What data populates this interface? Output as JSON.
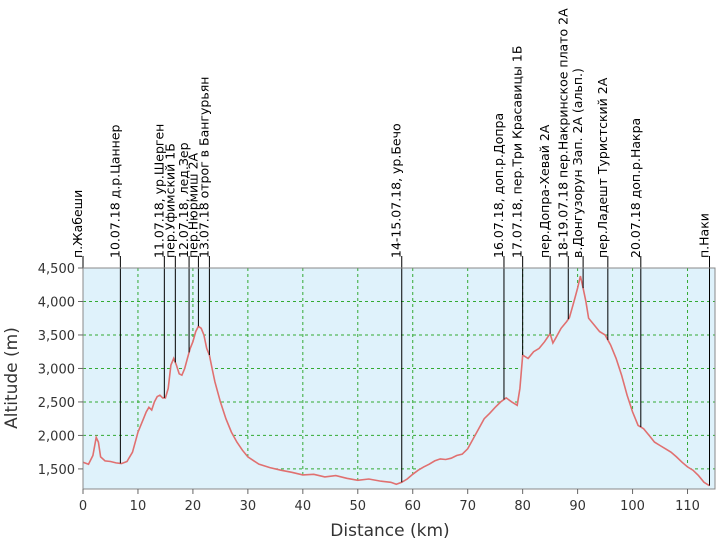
{
  "chart_data": {
    "type": "area",
    "title": "",
    "xlabel": "Distance (km)",
    "ylabel": "Altitude (m)",
    "xlim": [
      0,
      115
    ],
    "ylim": [
      1200,
      4500
    ],
    "x_ticks": [
      0,
      10,
      20,
      30,
      40,
      50,
      60,
      70,
      80,
      90,
      100,
      110
    ],
    "y_ticks": [
      1500,
      2000,
      2500,
      3000,
      3500,
      4000,
      4500
    ],
    "y_tick_labels": [
      "1,500",
      "2,000",
      "2,500",
      "3,000",
      "3,500",
      "4,000",
      "4,500"
    ],
    "grid": true,
    "colors": {
      "line": "#e07070",
      "plot_bg": "#dff2fb",
      "grid": "#33aa33",
      "waypoint_line": "#000000"
    },
    "series": [
      {
        "x": [
          0,
          1,
          1.8,
          2.4,
          2.8,
          3.2,
          4,
          5,
          6,
          7,
          8,
          9,
          10,
          11,
          11.5,
          12,
          12.5,
          13,
          13.5,
          14,
          14.5,
          15,
          15.5,
          16,
          16.5,
          17,
          17.5,
          18,
          18.5,
          19,
          19.5,
          20,
          20.5,
          21,
          21.5,
          22,
          22.5,
          23,
          23.5,
          24,
          25,
          26,
          27,
          28,
          29,
          30,
          32,
          34,
          36,
          38,
          40,
          42,
          44,
          46,
          48,
          50,
          52,
          54,
          56,
          57,
          58,
          59,
          60,
          61,
          62,
          63,
          64,
          65,
          66,
          67,
          68,
          69,
          70,
          71,
          72,
          73,
          74,
          75,
          76,
          77,
          78,
          79,
          79.5,
          80,
          81,
          82,
          83,
          84,
          85,
          85.5,
          86,
          87,
          88,
          88.5,
          89,
          89.5,
          90,
          90.5,
          91,
          91.5,
          92,
          93,
          94,
          95,
          96,
          97,
          98,
          99,
          100,
          101,
          102,
          103,
          104,
          105,
          106,
          107,
          108,
          109,
          110,
          111,
          112,
          113,
          114
        ],
        "y": [
          1600,
          1570,
          1700,
          1970,
          1900,
          1680,
          1620,
          1610,
          1590,
          1580,
          1610,
          1750,
          2050,
          2250,
          2350,
          2420,
          2380,
          2500,
          2580,
          2600,
          2560,
          2560,
          2700,
          3050,
          3150,
          3050,
          2920,
          2900,
          3000,
          3150,
          3300,
          3400,
          3550,
          3630,
          3600,
          3500,
          3300,
          3200,
          3000,
          2800,
          2500,
          2250,
          2050,
          1900,
          1780,
          1680,
          1570,
          1520,
          1480,
          1450,
          1410,
          1420,
          1380,
          1400,
          1360,
          1330,
          1350,
          1320,
          1300,
          1270,
          1300,
          1350,
          1420,
          1480,
          1530,
          1570,
          1620,
          1650,
          1640,
          1660,
          1700,
          1720,
          1800,
          1950,
          2100,
          2250,
          2330,
          2420,
          2500,
          2560,
          2500,
          2450,
          2700,
          3200,
          3150,
          3250,
          3300,
          3400,
          3520,
          3380,
          3450,
          3600,
          3700,
          3760,
          3900,
          4050,
          4200,
          4380,
          4200,
          4000,
          3750,
          3650,
          3550,
          3500,
          3350,
          3150,
          2900,
          2600,
          2350,
          2150,
          2100,
          2000,
          1900,
          1850,
          1800,
          1750,
          1680,
          1600,
          1530,
          1480,
          1400,
          1300,
          1250
        ]
      }
    ],
    "waypoints": [
      {
        "x": 0,
        "label": "п.Жабеши"
      },
      {
        "x": 6.8,
        "label": "10.07.18 д.р.Цаннер"
      },
      {
        "x": 14.8,
        "label": "11.07.18, ур.Шерген"
      },
      {
        "x": 16.8,
        "label": "пер.Уфимский 1Б"
      },
      {
        "x": 19.3,
        "label": "12.07.18, лед.Зер"
      },
      {
        "x": 21.0,
        "label": "пер.Нюрмиш 2А"
      },
      {
        "x": 23.0,
        "label": "13.07.18 отрог в Бангурьян"
      },
      {
        "x": 58.0,
        "label": "14-15.07.18, ур.Бечо"
      },
      {
        "x": 76.6,
        "label": "16.07.18, доп.р.Допра"
      },
      {
        "x": 80.0,
        "label": "17.07.18, пер.Три Красавицы 1Б"
      },
      {
        "x": 85.0,
        "label": "пер.Допра-Хевай 2А"
      },
      {
        "x": 88.3,
        "label": "18-19.07.18 пер.Накринское плато 2А"
      },
      {
        "x": 91.0,
        "label": "в.Донгузорун Зап. 2А (альп.)"
      },
      {
        "x": 95.5,
        "label": "пер.Ладешт Туристский 2А"
      },
      {
        "x": 101.5,
        "label": "20.07.18 доп.р.Накра"
      },
      {
        "x": 114.0,
        "label": "п.Наки"
      }
    ]
  }
}
